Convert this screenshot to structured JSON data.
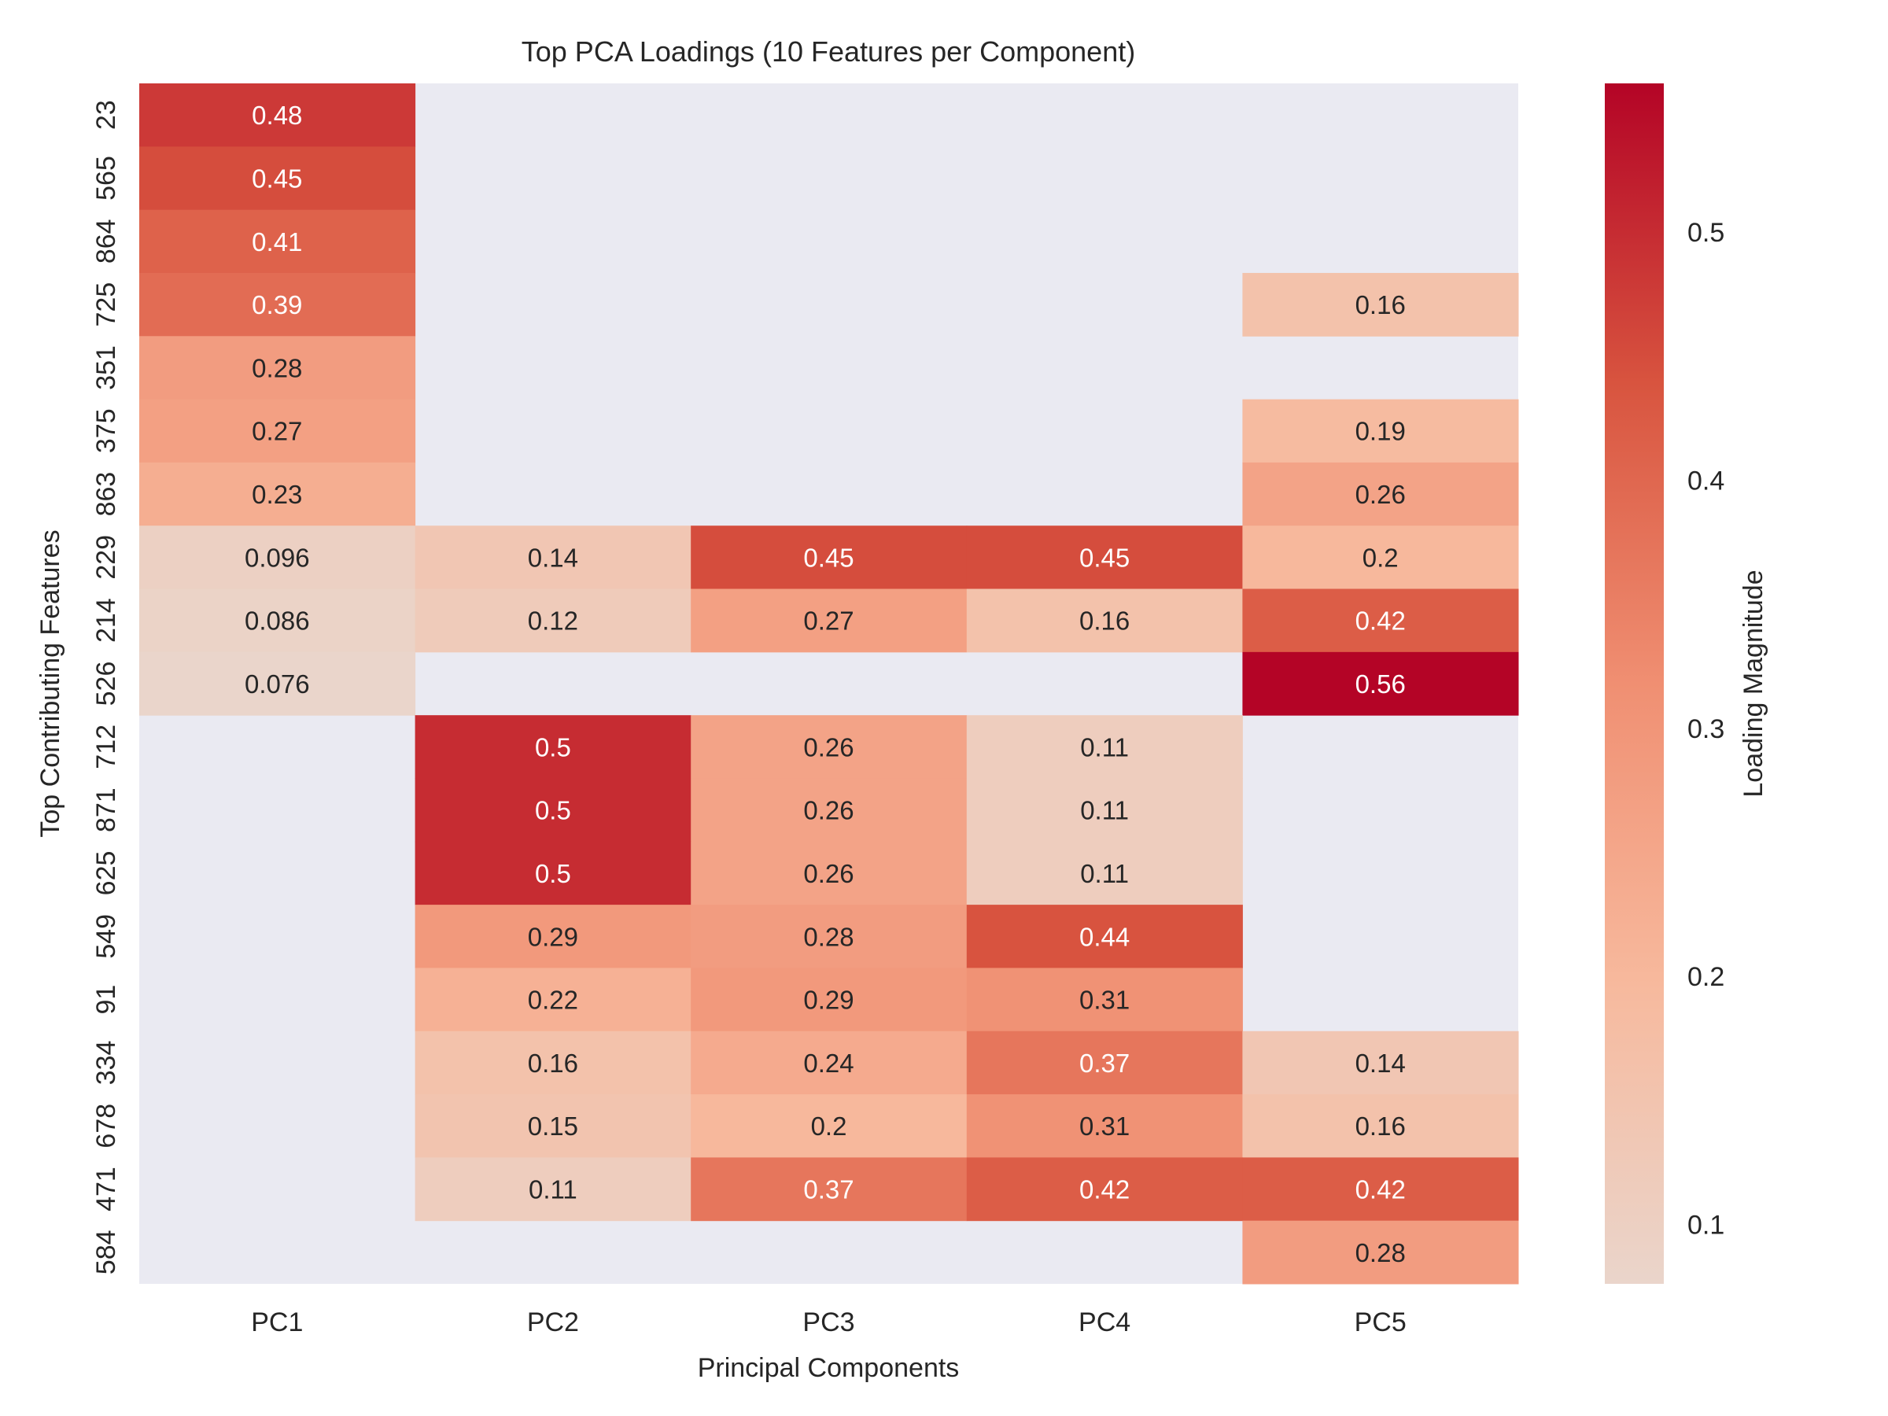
{
  "chart_data": {
    "type": "heatmap",
    "title": "Top PCA Loadings (10 Features per Component)",
    "xlabel": "Principal Components",
    "ylabel": "Top Contributing Features",
    "colorbar_label": "Loading Magnitude",
    "columns": [
      "PC1",
      "PC2",
      "PC3",
      "PC4",
      "PC5"
    ],
    "rows": [
      "23",
      "565",
      "864",
      "725",
      "351",
      "375",
      "863",
      "229",
      "214",
      "526",
      "712",
      "871",
      "625",
      "549",
      "91",
      "334",
      "678",
      "471",
      "584"
    ],
    "values": [
      [
        0.48,
        null,
        null,
        null,
        null
      ],
      [
        0.45,
        null,
        null,
        null,
        null
      ],
      [
        0.41,
        null,
        null,
        null,
        null
      ],
      [
        0.39,
        null,
        null,
        null,
        0.16
      ],
      [
        0.28,
        null,
        null,
        null,
        null
      ],
      [
        0.27,
        null,
        null,
        null,
        0.19
      ],
      [
        0.23,
        null,
        null,
        null,
        0.26
      ],
      [
        0.096,
        0.14,
        0.45,
        0.45,
        0.2
      ],
      [
        0.086,
        0.12,
        0.27,
        0.16,
        0.42
      ],
      [
        0.076,
        null,
        null,
        null,
        0.56
      ],
      [
        null,
        0.5,
        0.26,
        0.11,
        null
      ],
      [
        null,
        0.5,
        0.26,
        0.11,
        null
      ],
      [
        null,
        0.5,
        0.26,
        0.11,
        null
      ],
      [
        null,
        0.29,
        0.28,
        0.44,
        null
      ],
      [
        null,
        0.22,
        0.29,
        0.31,
        null
      ],
      [
        null,
        0.16,
        0.24,
        0.37,
        0.14
      ],
      [
        null,
        0.15,
        0.2,
        0.31,
        0.16
      ],
      [
        null,
        0.11,
        0.37,
        0.42,
        0.42
      ],
      [
        null,
        null,
        null,
        null,
        0.28
      ]
    ],
    "colorbar_ticks": [
      "0.1",
      "0.2",
      "0.3",
      "0.4",
      "0.5"
    ],
    "colorbar_range": [
      0.076,
      0.56
    ],
    "colormap": "coolwarm (upper half)",
    "colormap_stops": [
      "#ead5cb",
      "#f7b99d",
      "#f08f72",
      "#d8543f",
      "#b40426"
    ],
    "missing_color": "#eaeaf2",
    "text_color_dark": "#262626",
    "text_color_light": "#ffffff"
  }
}
